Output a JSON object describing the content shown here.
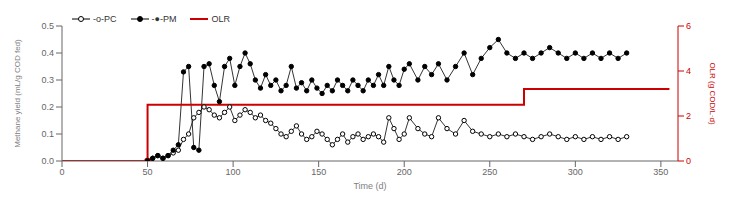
{
  "chart_data": {
    "type": "line",
    "xlabel": "Time (d)",
    "ylabel": "Methane yield (mL/g COD fed)",
    "y2label": "OLR (g COD/L·d)",
    "xlim": [
      0,
      360
    ],
    "ylim": [
      0,
      0.5
    ],
    "y2lim": [
      0,
      6
    ],
    "xticks": [
      0,
      50,
      100,
      150,
      200,
      250,
      300,
      350
    ],
    "yticks": [
      {
        "value": 0,
        "label": "0.0"
      },
      0.1,
      0.2,
      0.3,
      0.4,
      0.5
    ],
    "y2ticks": [
      0,
      2,
      4,
      6
    ],
    "grid": false,
    "legend": "upper left",
    "series": [
      {
        "name": "-o-PC",
        "color": "#000000",
        "marker": "open_circle",
        "x": [
          50,
          53,
          56,
          59,
          62,
          65,
          68,
          71,
          74,
          77,
          80,
          83,
          86,
          89,
          92,
          95,
          98,
          101,
          104,
          107,
          110,
          113,
          116,
          119,
          122,
          125,
          128,
          131,
          134,
          137,
          140,
          143,
          146,
          149,
          152,
          155,
          158,
          161,
          164,
          167,
          170,
          173,
          176,
          179,
          182,
          185,
          188,
          191,
          194,
          197,
          200,
          203,
          208,
          212,
          216,
          220,
          225,
          230,
          235,
          240,
          245,
          250,
          255,
          260,
          265,
          270,
          275,
          280,
          285,
          290,
          295,
          300,
          305,
          310,
          315,
          320,
          325,
          330
        ],
        "values": [
          0.0,
          0.01,
          0.02,
          0.01,
          0.02,
          0.03,
          0.04,
          0.08,
          0.1,
          0.16,
          0.18,
          0.2,
          0.19,
          0.17,
          0.16,
          0.18,
          0.2,
          0.15,
          0.17,
          0.19,
          0.18,
          0.16,
          0.17,
          0.15,
          0.14,
          0.12,
          0.1,
          0.09,
          0.11,
          0.13,
          0.1,
          0.08,
          0.09,
          0.11,
          0.1,
          0.08,
          0.06,
          0.08,
          0.1,
          0.07,
          0.09,
          0.1,
          0.08,
          0.09,
          0.1,
          0.09,
          0.07,
          0.16,
          0.12,
          0.08,
          0.1,
          0.16,
          0.12,
          0.1,
          0.09,
          0.16,
          0.12,
          0.1,
          0.15,
          0.11,
          0.1,
          0.09,
          0.1,
          0.09,
          0.1,
          0.09,
          0.08,
          0.09,
          0.1,
          0.09,
          0.08,
          0.09,
          0.08,
          0.09,
          0.08,
          0.09,
          0.08,
          0.09
        ]
      },
      {
        "name": "-●-PM",
        "color": "#000000",
        "marker": "circle",
        "x": [
          50,
          53,
          56,
          59,
          62,
          65,
          68,
          71,
          74,
          77,
          80,
          83,
          86,
          89,
          92,
          95,
          98,
          101,
          104,
          107,
          110,
          113,
          116,
          119,
          122,
          125,
          128,
          131,
          134,
          137,
          140,
          143,
          146,
          149,
          152,
          155,
          158,
          161,
          164,
          167,
          170,
          173,
          176,
          179,
          182,
          185,
          188,
          191,
          194,
          197,
          200,
          203,
          208,
          212,
          216,
          220,
          225,
          230,
          235,
          240,
          245,
          250,
          255,
          260,
          265,
          270,
          275,
          280,
          285,
          290,
          295,
          300,
          305,
          310,
          315,
          320,
          325,
          330
        ],
        "values": [
          0.0,
          0.01,
          0.02,
          0.01,
          0.02,
          0.04,
          0.06,
          0.33,
          0.35,
          0.05,
          0.04,
          0.35,
          0.36,
          0.28,
          0.22,
          0.35,
          0.38,
          0.28,
          0.35,
          0.4,
          0.36,
          0.3,
          0.27,
          0.32,
          0.28,
          0.3,
          0.26,
          0.28,
          0.35,
          0.27,
          0.29,
          0.26,
          0.3,
          0.27,
          0.25,
          0.28,
          0.26,
          0.3,
          0.28,
          0.26,
          0.3,
          0.28,
          0.26,
          0.3,
          0.28,
          0.32,
          0.28,
          0.35,
          0.3,
          0.28,
          0.34,
          0.36,
          0.3,
          0.35,
          0.32,
          0.36,
          0.3,
          0.35,
          0.4,
          0.32,
          0.38,
          0.42,
          0.45,
          0.4,
          0.38,
          0.4,
          0.38,
          0.4,
          0.42,
          0.4,
          0.38,
          0.4,
          0.38,
          0.4,
          0.38,
          0.4,
          0.38,
          0.4
        ]
      },
      {
        "name": "OLR",
        "color": "#cc0000",
        "axis": "y2",
        "x": [
          0,
          50,
          50,
          270,
          270,
          355
        ],
        "values": [
          0,
          0,
          2.5,
          2.5,
          3.2,
          3.2
        ]
      },
      {
        "type": "scatter",
        "color": "#cc0000",
        "axis": "y2",
        "marker": "circle",
        "x": [
          50
        ],
        "values": [
          0
        ]
      }
    ]
  }
}
